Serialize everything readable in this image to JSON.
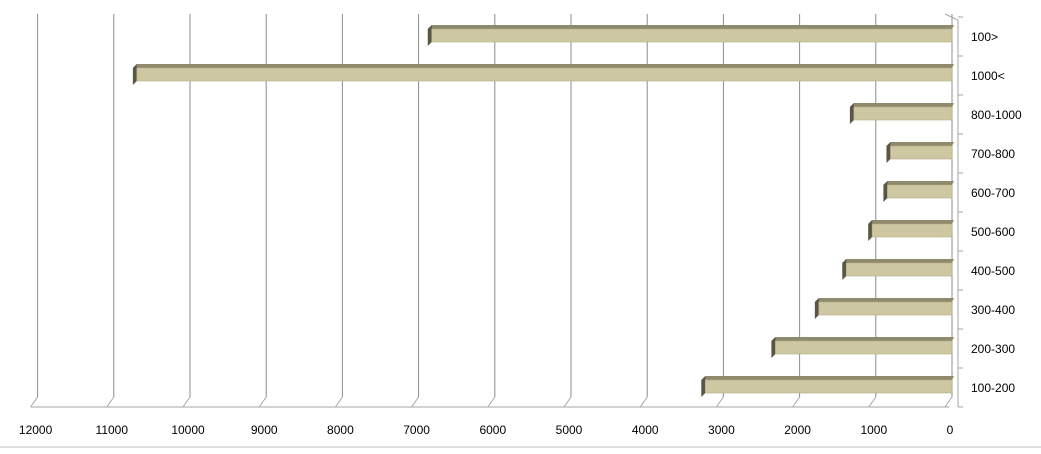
{
  "chart_data": {
    "type": "bar",
    "orientation": "horizontal",
    "x_axis": "reversed",
    "categories": [
      "100>",
      "1000<",
      "800-1000",
      "700-800",
      "600-700",
      "500-600",
      "400-500",
      "300-400",
      "200-300",
      "100-200"
    ],
    "values": [
      6880,
      10750,
      1340,
      860,
      900,
      1100,
      1440,
      1800,
      2370,
      3290
    ],
    "xlim": [
      0,
      12000
    ],
    "xticks": [
      "0",
      "1000",
      "2000",
      "3000",
      "4000",
      "5000",
      "6000",
      "7000",
      "8000",
      "9000",
      "10000",
      "11000",
      "12000"
    ],
    "title": "",
    "xlabel": "",
    "ylabel": "",
    "grid": true,
    "legend": "none",
    "colors": {
      "bar_face": "#cdc7a2",
      "bar_top": "#8f8a6e",
      "bar_side": "#5a5640",
      "grid": "#8c8c8c",
      "axis": "#a6a6a6"
    }
  }
}
